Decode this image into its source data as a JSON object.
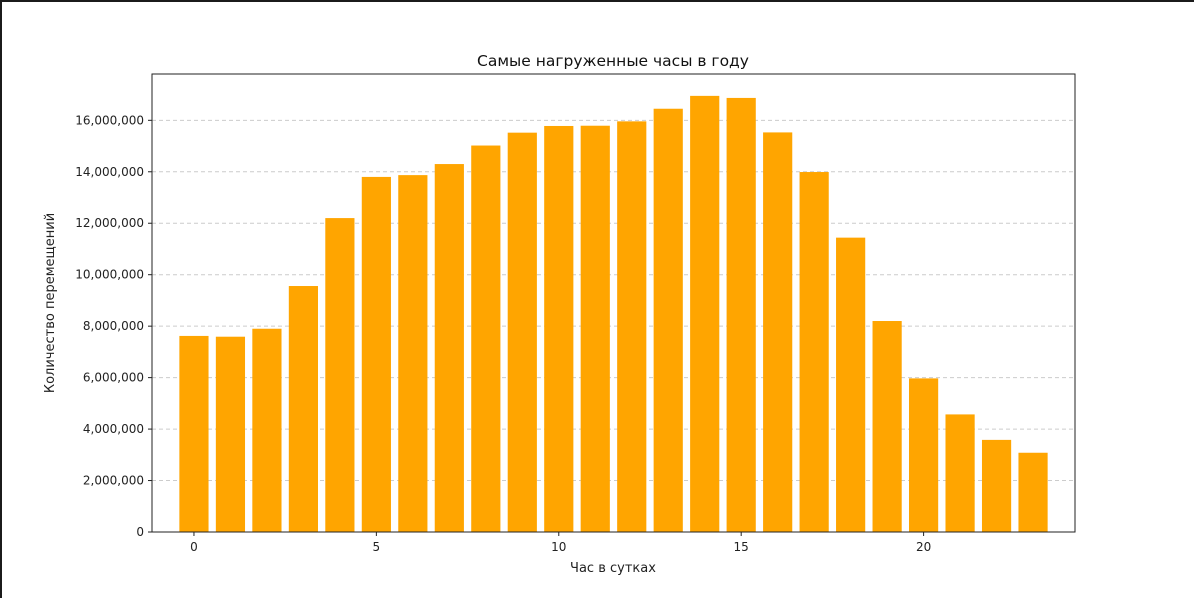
{
  "chart_data": {
    "type": "bar",
    "title": "Самые нагруженные часы в году",
    "xlabel": "Час в сутках",
    "ylabel": "Количество перемещений",
    "categories": [
      0,
      1,
      2,
      3,
      4,
      5,
      6,
      7,
      8,
      9,
      10,
      11,
      12,
      13,
      14,
      15,
      16,
      17,
      18,
      19,
      20,
      21,
      22,
      23
    ],
    "values": [
      7620000,
      7590000,
      7900000,
      9560000,
      12200000,
      13800000,
      13870000,
      14300000,
      15020000,
      15520000,
      15780000,
      15790000,
      15960000,
      16450000,
      16950000,
      16870000,
      15530000,
      13990000,
      11440000,
      8200000,
      5970000,
      4570000,
      3580000,
      3080000
    ],
    "x_ticks": [
      0,
      5,
      10,
      15,
      20
    ],
    "y_ticks": [
      0,
      2000000,
      4000000,
      6000000,
      8000000,
      10000000,
      12000000,
      14000000,
      16000000
    ],
    "y_tick_labels": [
      "0",
      "2,000,000",
      "4,000,000",
      "6,000,000",
      "8,000,000",
      "10,000,000",
      "12,000,000",
      "14,000,000",
      "16,000,000"
    ],
    "xlim": [
      -1.15,
      24.15
    ],
    "ylim": [
      0,
      17800000
    ],
    "grid": "y-dashed",
    "bar_color": "#ffa500",
    "grid_color": "#cccccc"
  }
}
